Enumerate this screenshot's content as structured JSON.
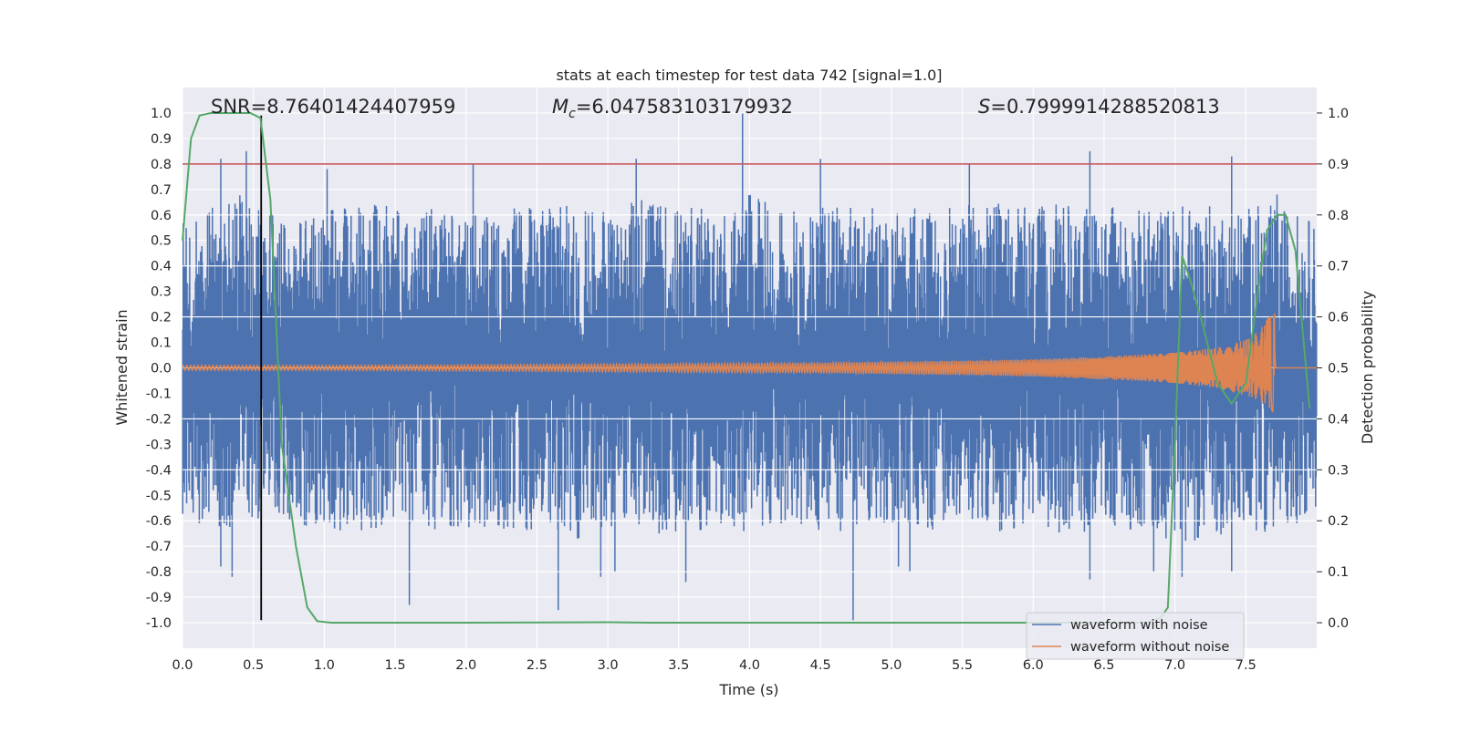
{
  "chart_data": {
    "type": "line",
    "title": "stats at each timestep for test data 742 [signal=1.0]",
    "xlabel": "Time (s)",
    "ylabel": "Whitened strain",
    "ylabel_right": "Detection probability",
    "xlim": [
      0.0,
      8.0
    ],
    "ylim": [
      -1.1,
      1.1
    ],
    "ylim_right": [
      -0.05,
      1.05
    ],
    "x_ticks": [
      "0.0",
      "0.5",
      "1.0",
      "1.5",
      "2.0",
      "2.5",
      "3.0",
      "3.5",
      "4.0",
      "4.5",
      "5.0",
      "5.5",
      "6.0",
      "6.5",
      "7.0",
      "7.5"
    ],
    "y_ticks": [
      "1.0",
      "0.9",
      "0.8",
      "0.7",
      "0.6",
      "0.5",
      "0.4",
      "0.3",
      "0.2",
      "0.1",
      "0.0",
      "-0.1",
      "-0.2",
      "-0.3",
      "-0.4",
      "-0.5",
      "-0.6",
      "-0.7",
      "-0.8",
      "-0.9",
      "-1.0"
    ],
    "y_ticks_right": [
      "1.0",
      "0.9",
      "0.8",
      "0.7",
      "0.6",
      "0.5",
      "0.4",
      "0.3",
      "0.2",
      "0.1",
      "0.0"
    ],
    "grid": true,
    "legend_position": "lower-right",
    "annotations": {
      "snr": "SNR=8.76401424407959",
      "mc_symbol": "M",
      "mc_sub": "c",
      "mc_value": "=6.047583103179932",
      "s_symbol": "S",
      "s_value": "=0.7999914288520813"
    },
    "series": [
      {
        "name": "waveform with noise",
        "color": "#4c72b0",
        "axis": "left",
        "envelope_x": [
          0.0,
          0.2,
          0.4,
          0.6,
          0.8,
          1.0,
          1.2,
          1.4,
          1.6,
          1.8,
          2.0,
          2.2,
          2.4,
          2.6,
          2.8,
          3.0,
          3.2,
          3.4,
          3.6,
          3.8,
          4.0,
          4.2,
          4.4,
          4.6,
          4.8,
          5.0,
          5.2,
          5.4,
          5.6,
          5.8,
          6.0,
          6.2,
          6.4,
          6.6,
          6.8,
          7.0,
          7.2,
          7.4,
          7.6,
          7.8,
          8.0
        ],
        "envelope_top": [
          0.55,
          0.6,
          0.65,
          0.6,
          0.55,
          0.6,
          0.6,
          0.62,
          0.6,
          0.6,
          0.58,
          0.62,
          0.62,
          0.6,
          0.62,
          0.6,
          0.65,
          0.62,
          0.62,
          0.6,
          0.65,
          0.62,
          0.6,
          0.62,
          0.6,
          0.62,
          0.6,
          0.6,
          0.62,
          0.62,
          0.6,
          0.62,
          0.62,
          0.6,
          0.6,
          0.62,
          0.62,
          0.6,
          0.62,
          0.6,
          0.55
        ],
        "envelope_bottom": [
          -0.6,
          -0.6,
          -0.6,
          -0.55,
          -0.6,
          -0.6,
          -0.62,
          -0.6,
          -0.6,
          -0.62,
          -0.6,
          -0.6,
          -0.62,
          -0.6,
          -0.65,
          -0.6,
          -0.6,
          -0.65,
          -0.62,
          -0.6,
          -0.62,
          -0.6,
          -0.62,
          -0.62,
          -0.62,
          -0.6,
          -0.62,
          -0.6,
          -0.6,
          -0.62,
          -0.6,
          -0.62,
          -0.62,
          -0.6,
          -0.62,
          -0.65,
          -0.65,
          -0.62,
          -0.62,
          -0.6,
          -0.55
        ],
        "peaks_x": [
          0.45,
          0.27,
          3.95,
          3.2,
          4.5,
          5.55,
          6.4,
          7.4,
          2.05,
          1.02,
          0.98,
          7.72,
          0.27,
          1.6,
          2.65,
          3.55,
          4.73,
          5.13,
          6.4,
          7.4,
          0.35,
          2.95,
          3.05,
          5.05,
          6.85,
          7.05
        ],
        "peaks_y": [
          0.85,
          0.82,
          1.0,
          0.82,
          0.82,
          0.8,
          0.85,
          0.83,
          0.8,
          0.78,
          0.55,
          0.68,
          -0.78,
          -0.93,
          -0.95,
          -0.84,
          -0.99,
          -0.8,
          -0.83,
          -0.8,
          -0.82,
          -0.82,
          -0.8,
          -0.78,
          -0.8,
          -0.82
        ]
      },
      {
        "name": "waveform without noise",
        "color": "#dd8452",
        "axis": "left",
        "envelope_x": [
          0.0,
          1.0,
          2.0,
          3.0,
          4.0,
          4.5,
          5.0,
          5.5,
          6.0,
          6.5,
          7.0,
          7.3,
          7.5,
          7.6,
          7.65,
          7.7,
          7.71,
          7.75,
          8.0
        ],
        "envelope_top": [
          0.01,
          0.01,
          0.012,
          0.015,
          0.018,
          0.02,
          0.024,
          0.028,
          0.034,
          0.045,
          0.06,
          0.08,
          0.11,
          0.15,
          0.19,
          0.28,
          0.0,
          0.0,
          0.0
        ],
        "envelope_bottom": [
          -0.01,
          -0.01,
          -0.012,
          -0.015,
          -0.018,
          -0.02,
          -0.024,
          -0.028,
          -0.034,
          -0.045,
          -0.06,
          -0.08,
          -0.11,
          -0.13,
          -0.15,
          -0.18,
          0.0,
          0.0,
          0.0
        ]
      },
      {
        "name": "detection probability",
        "color": "#55a868",
        "axis": "right",
        "x": [
          0.0,
          0.06,
          0.12,
          0.2,
          0.3,
          0.4,
          0.48,
          0.55,
          0.62,
          0.7,
          0.8,
          0.88,
          0.95,
          1.05,
          2.0,
          3.0,
          3.3,
          4.0,
          5.0,
          6.0,
          6.3,
          6.6,
          6.8,
          6.9,
          6.95,
          7.0,
          7.05,
          7.1,
          7.2,
          7.3,
          7.4,
          7.5,
          7.6,
          7.65,
          7.72,
          7.78,
          7.85,
          7.95
        ],
        "y": [
          0.75,
          0.95,
          0.995,
          1.0,
          1.0,
          1.0,
          1.0,
          0.99,
          0.83,
          0.35,
          0.15,
          0.03,
          0.003,
          0.0,
          0.0,
          0.001,
          0.0,
          0.0,
          0.0,
          0.0,
          0.0,
          0.0,
          0.0,
          0.01,
          0.03,
          0.35,
          0.72,
          0.68,
          0.58,
          0.47,
          0.43,
          0.47,
          0.68,
          0.77,
          0.8,
          0.8,
          0.73,
          0.42
        ]
      },
      {
        "name": "threshold",
        "color": "#c44e52",
        "axis": "right",
        "y": 0.9
      },
      {
        "name": "marker",
        "color": "#000000",
        "axis": "left",
        "x": 0.555,
        "y_range": [
          -0.99,
          0.99
        ]
      }
    ]
  }
}
